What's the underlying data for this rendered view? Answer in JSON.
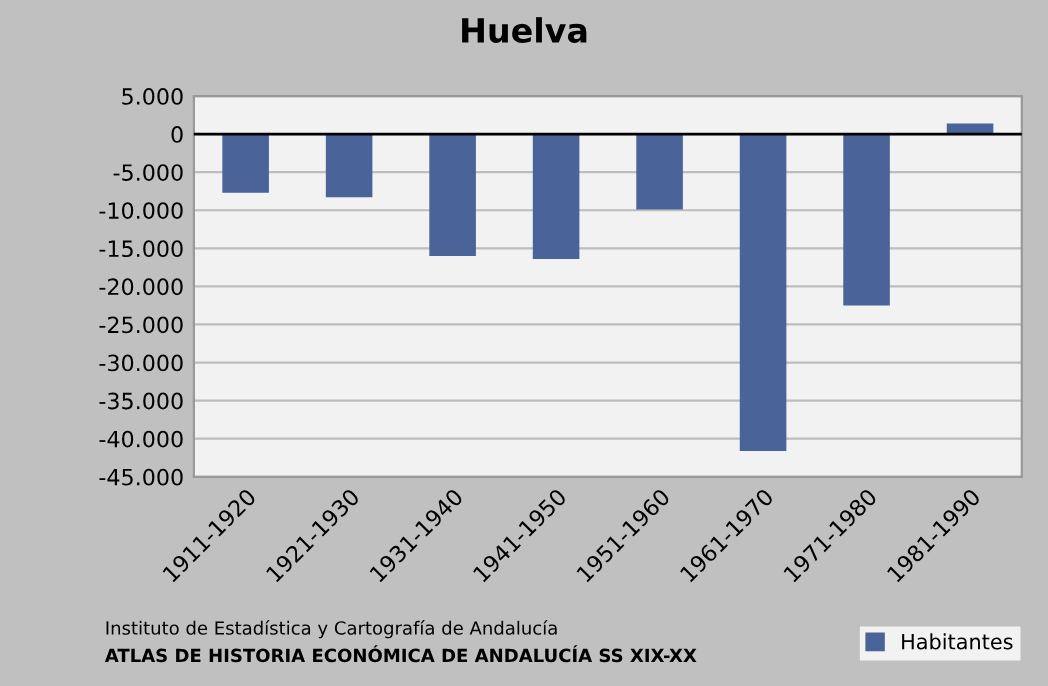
{
  "chart_data": {
    "type": "bar",
    "title": "Huelva",
    "categories": [
      "1911-1920",
      "1921-1930",
      "1931-1940",
      "1941-1950",
      "1951-1960",
      "1961-1970",
      "1971-1980",
      "1981-1990"
    ],
    "series": [
      {
        "name": "Habitantes",
        "color": "#4a6398",
        "values": [
          -7700,
          -8300,
          -16000,
          -16400,
          -9900,
          -41600,
          -22500,
          1400
        ]
      }
    ],
    "ylim": [
      -45000,
      5000
    ],
    "yticks": [
      {
        "value": 5000,
        "label": "5.000"
      },
      {
        "value": 0,
        "label": "0"
      },
      {
        "value": -5000,
        "label": "-5.000"
      },
      {
        "value": -10000,
        "label": "-10.000"
      },
      {
        "value": -15000,
        "label": "-15.000"
      },
      {
        "value": -20000,
        "label": "-20.000"
      },
      {
        "value": -25000,
        "label": "-25.000"
      },
      {
        "value": -30000,
        "label": "-30.000"
      },
      {
        "value": -35000,
        "label": "-35.000"
      },
      {
        "value": -40000,
        "label": "-40.000"
      },
      {
        "value": -45000,
        "label": "-45.000"
      }
    ],
    "grid": "y",
    "legend": "bottom right",
    "annotations": [
      "Instituto de Estadística y Cartografía de Andalucía",
      "ATLAS DE HISTORIA ECONÓMICA DE ANDALUCÍA SS XIX-XX"
    ]
  }
}
